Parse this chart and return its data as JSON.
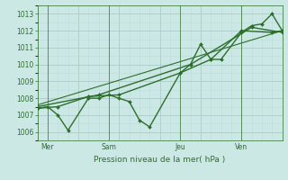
{
  "bg_color": "#cce8e4",
  "grid_major_color": "#aacccc",
  "grid_minor_color": "#bbdddd",
  "line_color": "#2d6e2d",
  "xlabel": "Pression niveau de la mer( hPa )",
  "ylim": [
    1005.5,
    1013.5
  ],
  "xlim": [
    0,
    12.0
  ],
  "yticks": [
    1006,
    1007,
    1008,
    1009,
    1010,
    1011,
    1012,
    1013
  ],
  "day_positions": [
    0.5,
    3.5,
    7.0,
    10.0
  ],
  "day_labels": [
    "Mer",
    "Sam",
    "Jeu",
    "Ven"
  ],
  "vline_positions": [
    0.5,
    3.5,
    7.0,
    10.0
  ],
  "series": [
    {
      "x": [
        0.0,
        0.5,
        1.0,
        1.5,
        2.5,
        3.0,
        3.5,
        4.0,
        4.5,
        5.0,
        5.5,
        7.0,
        7.5,
        8.0,
        8.5,
        9.0,
        10.0,
        10.5,
        11.0,
        11.5,
        12.0
      ],
      "y": [
        1007.4,
        1007.5,
        1007.0,
        1006.1,
        1008.0,
        1008.0,
        1008.2,
        1008.0,
        1007.8,
        1006.7,
        1006.3,
        1009.5,
        1010.0,
        1011.2,
        1010.3,
        1010.3,
        1011.9,
        1012.3,
        1012.4,
        1013.0,
        1012.0
      ],
      "marker": true,
      "lw": 1.0
    },
    {
      "x": [
        0.0,
        1.0,
        2.5,
        4.0,
        7.0,
        8.5,
        10.0,
        11.5,
        12.0
      ],
      "y": [
        1007.4,
        1007.5,
        1008.1,
        1008.2,
        1009.5,
        1010.3,
        1012.0,
        1011.9,
        1012.0
      ],
      "marker": true,
      "lw": 1.0
    },
    {
      "x": [
        0.0,
        3.0,
        7.5,
        10.5,
        12.0
      ],
      "y": [
        1007.5,
        1008.2,
        1010.0,
        1012.2,
        1011.9
      ],
      "marker": true,
      "lw": 1.0
    },
    {
      "x": [
        0.0,
        12.0
      ],
      "y": [
        1007.6,
        1012.0
      ],
      "marker": false,
      "lw": 0.8
    }
  ]
}
